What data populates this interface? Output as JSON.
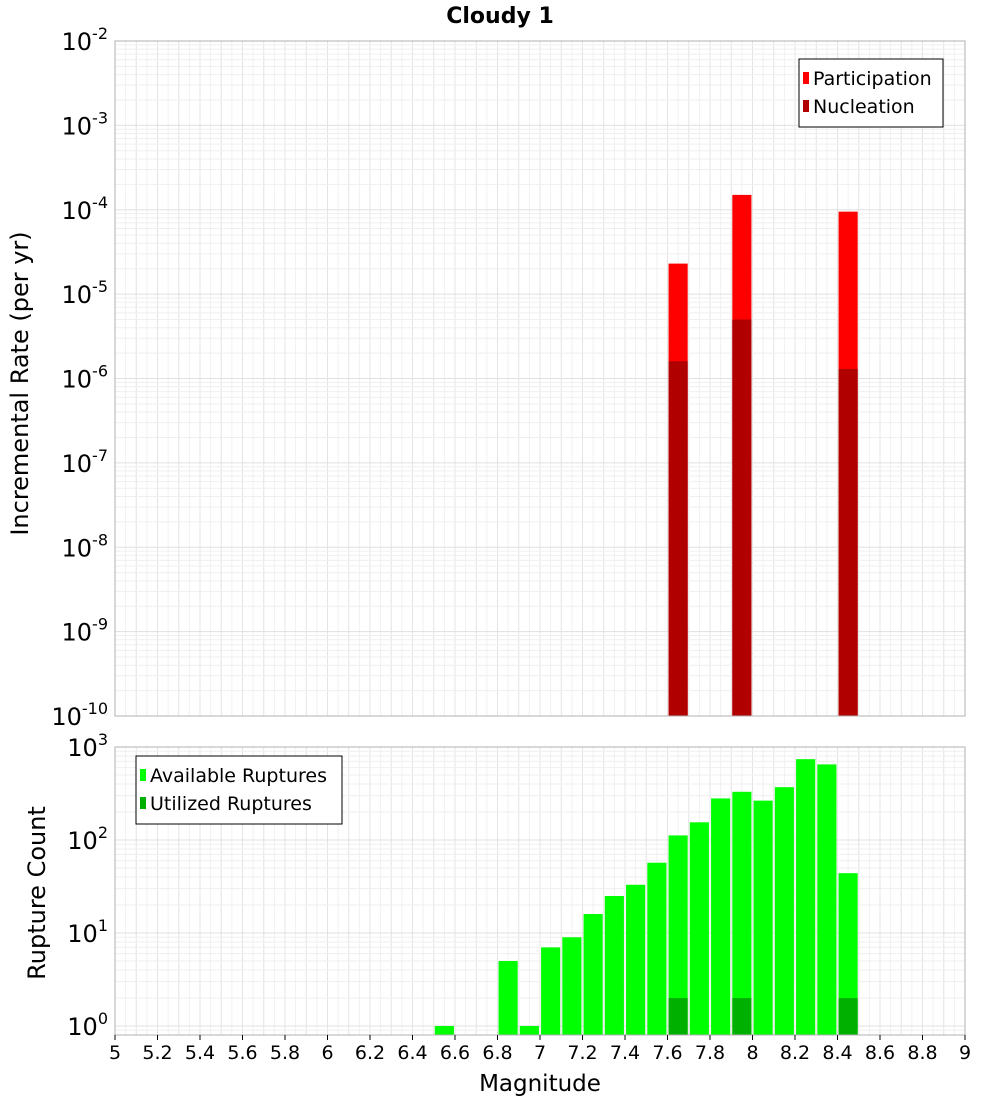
{
  "chart_data": [
    {
      "type": "bar",
      "title": "Cloudy 1",
      "ylabel": "Incremental Rate (per yr)",
      "yscale": "log",
      "ylim_exp": [
        -10,
        -2
      ],
      "xlim": [
        5,
        9
      ],
      "legend_position": "top-right",
      "grid": true,
      "bar_width": 0.09,
      "series": [
        {
          "name": "Participation",
          "color": "#ff0000",
          "points": [
            {
              "x": 7.65,
              "y": 2.3e-05
            },
            {
              "x": 7.95,
              "y": 0.00015
            },
            {
              "x": 8.45,
              "y": 9.5e-05
            }
          ]
        },
        {
          "name": "Nucleation",
          "color": "#b00000",
          "points": [
            {
              "x": 7.65,
              "y": 1.6e-06
            },
            {
              "x": 7.95,
              "y": 5e-06
            },
            {
              "x": 8.45,
              "y": 1.3e-06
            }
          ]
        }
      ]
    },
    {
      "type": "bar",
      "title": "",
      "xlabel": "Magnitude",
      "ylabel": "Rupture Count",
      "yscale": "log",
      "ylim_exp": [
        0,
        3
      ],
      "ymin": 0.8,
      "xlim": [
        5,
        9
      ],
      "xticks": [
        "5",
        "5.2",
        "5.4",
        "5.6",
        "5.8",
        "6",
        "6.2",
        "6.4",
        "6.6",
        "6.8",
        "7",
        "7.2",
        "7.4",
        "7.6",
        "7.8",
        "8",
        "8.2",
        "8.4",
        "8.6",
        "8.8",
        "9"
      ],
      "legend_position": "top-left",
      "grid": true,
      "bar_width": 0.09,
      "series": [
        {
          "name": "Available Ruptures",
          "color": "#00ff00",
          "points": [
            {
              "x": 6.55,
              "y": 1
            },
            {
              "x": 6.85,
              "y": 5
            },
            {
              "x": 6.95,
              "y": 1
            },
            {
              "x": 7.05,
              "y": 7
            },
            {
              "x": 7.15,
              "y": 9
            },
            {
              "x": 7.25,
              "y": 16
            },
            {
              "x": 7.35,
              "y": 25
            },
            {
              "x": 7.45,
              "y": 33
            },
            {
              "x": 7.55,
              "y": 57
            },
            {
              "x": 7.65,
              "y": 112
            },
            {
              "x": 7.75,
              "y": 155
            },
            {
              "x": 7.85,
              "y": 280
            },
            {
              "x": 7.95,
              "y": 330
            },
            {
              "x": 8.05,
              "y": 265
            },
            {
              "x": 8.15,
              "y": 370
            },
            {
              "x": 8.25,
              "y": 740
            },
            {
              "x": 8.35,
              "y": 650
            },
            {
              "x": 8.45,
              "y": 44
            }
          ]
        },
        {
          "name": "Utilized Ruptures",
          "color": "#00b000",
          "points": [
            {
              "x": 7.65,
              "y": 2
            },
            {
              "x": 7.95,
              "y": 2
            },
            {
              "x": 8.45,
              "y": 2
            }
          ]
        }
      ]
    }
  ]
}
